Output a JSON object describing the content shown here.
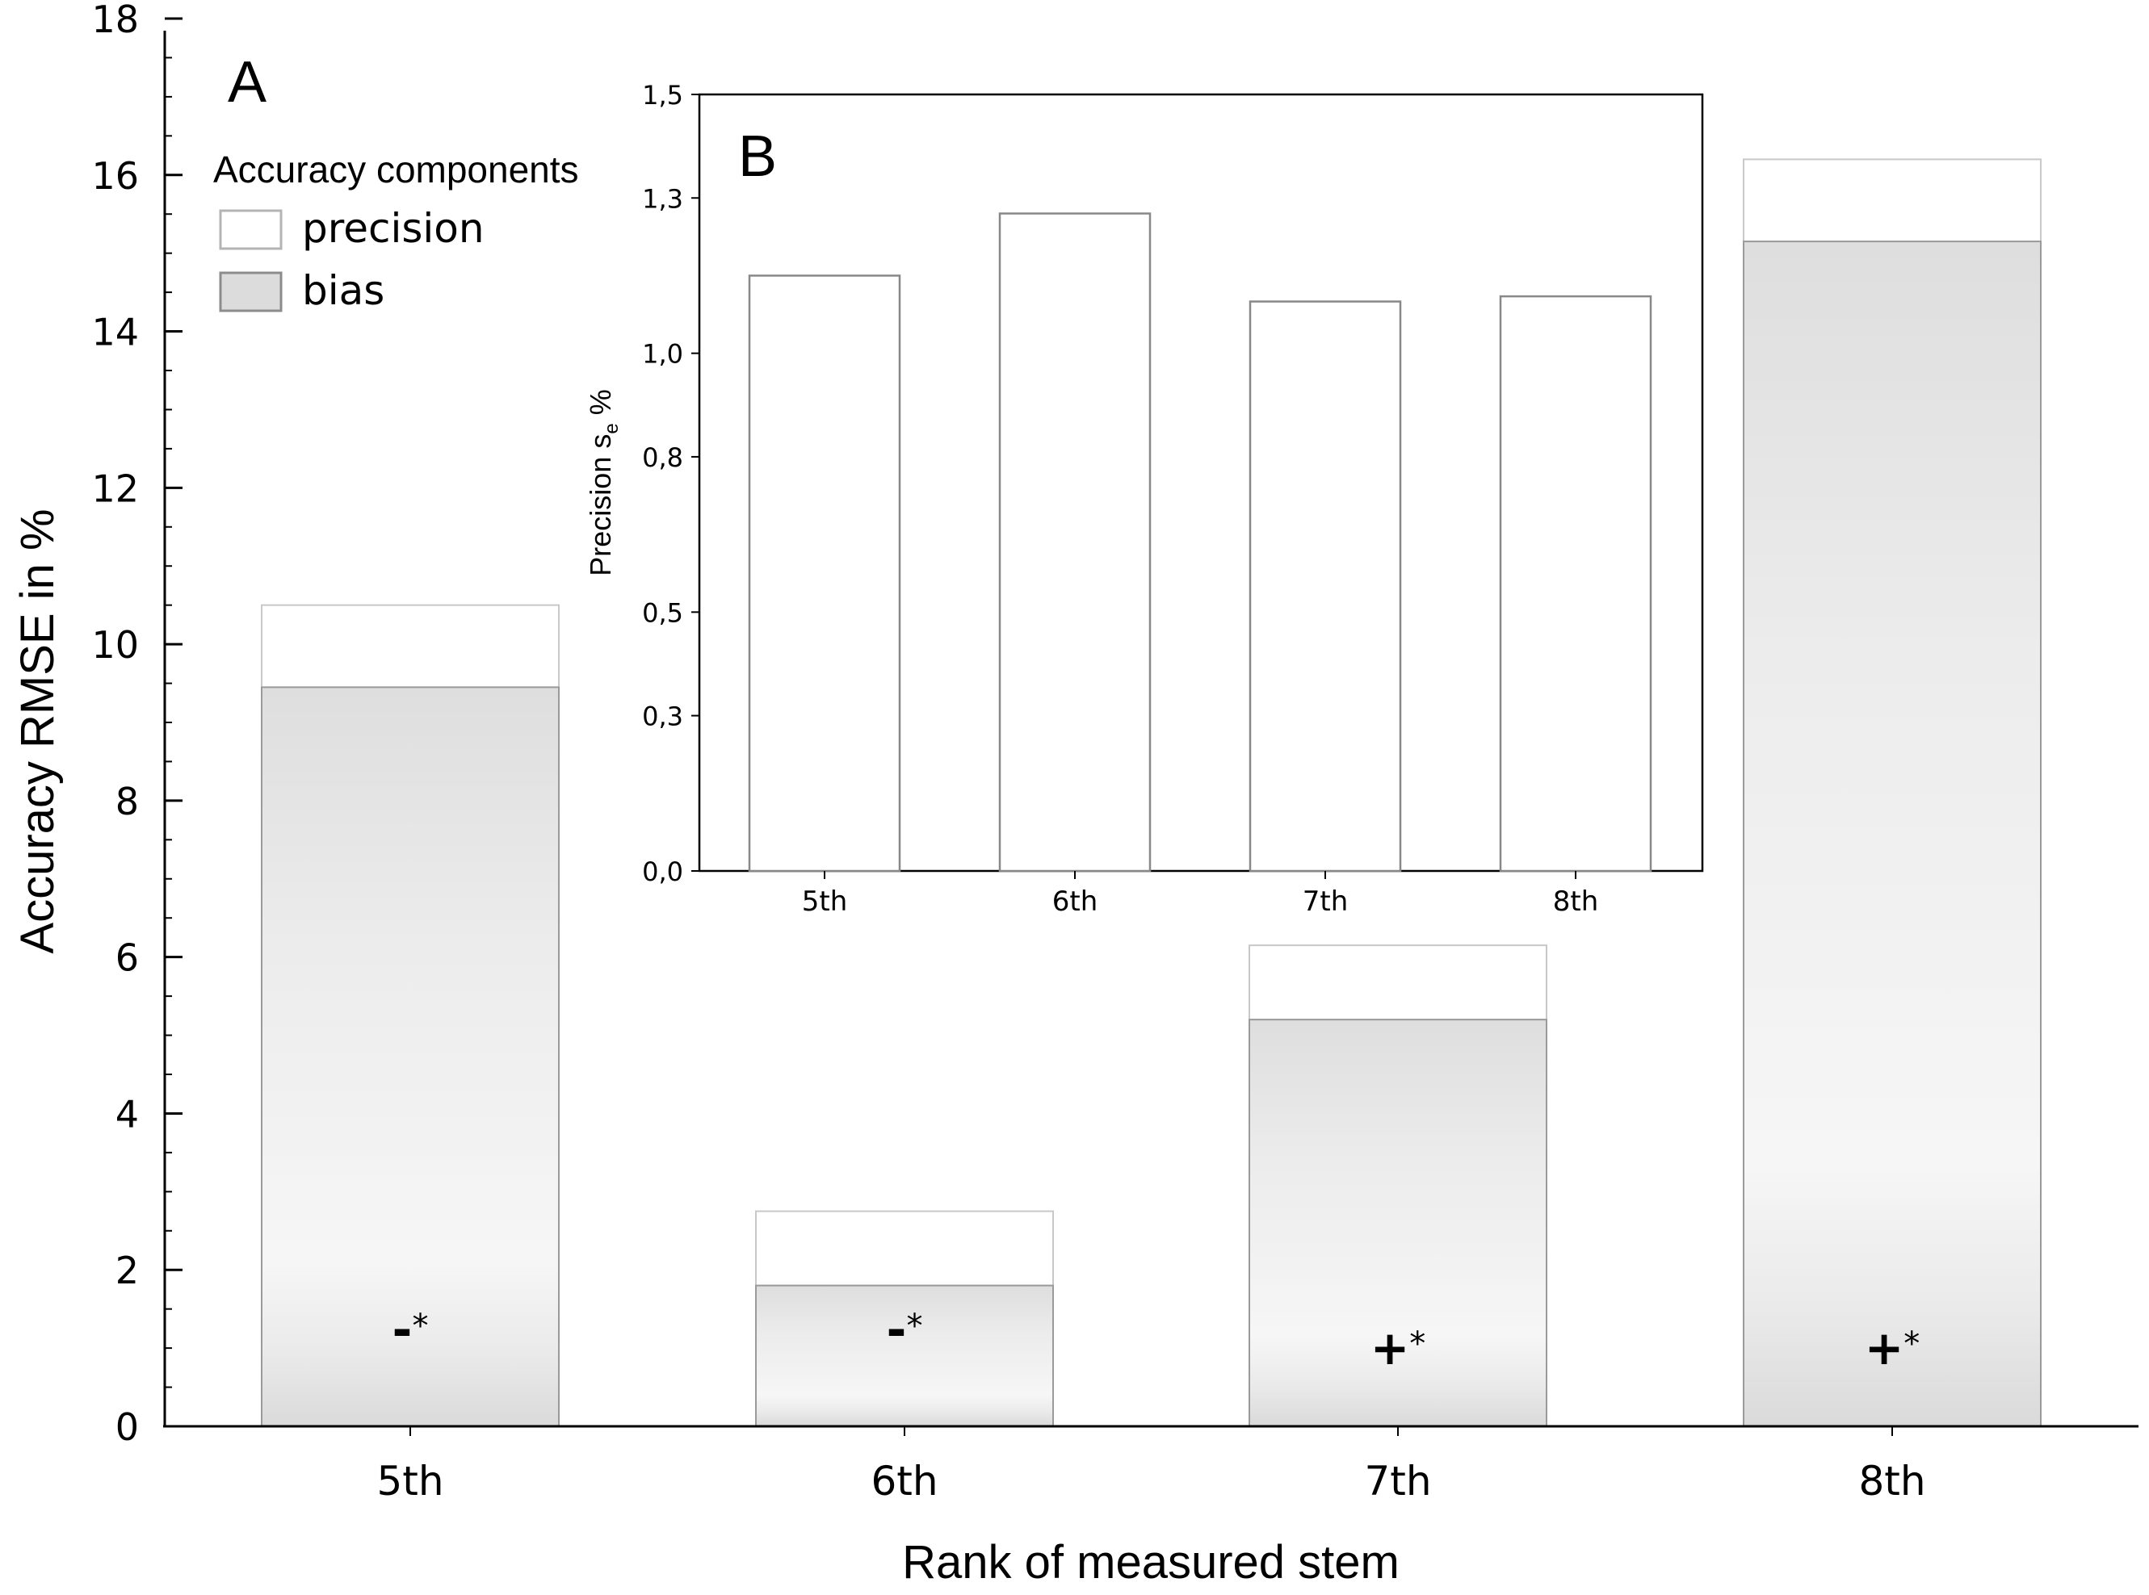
{
  "chart_data": [
    {
      "panel": "A",
      "type": "bar",
      "stacked": true,
      "ylabel": "Accuracy RMSE in %",
      "xlabel": "Rank of measured stem",
      "ylim": [
        0,
        18
      ],
      "y_ticks": [
        "0",
        "2",
        "4",
        "6",
        "8",
        "10",
        "12",
        "14",
        "16",
        "18"
      ],
      "categories": [
        "5th",
        "6th",
        "7th",
        "8th"
      ],
      "legend": {
        "title": "Accuracy components",
        "placement": "top-left",
        "items": [
          "precision",
          "bias"
        ]
      },
      "series": [
        {
          "name": "bias",
          "values": [
            9.45,
            1.8,
            5.2,
            15.15
          ]
        },
        {
          "name": "precision",
          "values": [
            1.05,
            0.95,
            0.95,
            1.05
          ]
        }
      ],
      "totals": [
        10.5,
        2.75,
        6.15,
        16.2
      ],
      "bar_annotations": [
        {
          "sign": "-",
          "mark": "*"
        },
        {
          "sign": "-",
          "mark": "*"
        },
        {
          "sign": "+",
          "mark": "*"
        },
        {
          "sign": "+",
          "mark": "*"
        }
      ],
      "colors": {
        "precision": "#ffffff",
        "bias": "#e2e2e2",
        "outline": "#9a9a9a"
      }
    },
    {
      "panel": "B",
      "type": "bar",
      "ylabel": "Precision s",
      "ylabel_subscript": "e",
      "ylabel_suffix": " %",
      "ylim": [
        0,
        1.5
      ],
      "y_ticks": [
        "0,0",
        "0,3",
        "0,5",
        "0,8",
        "1,0",
        "1,3",
        "1,5"
      ],
      "categories": [
        "5th",
        "6th",
        "7th",
        "8th"
      ],
      "values": [
        1.15,
        1.27,
        1.1,
        1.11
      ],
      "grid": false
    }
  ]
}
